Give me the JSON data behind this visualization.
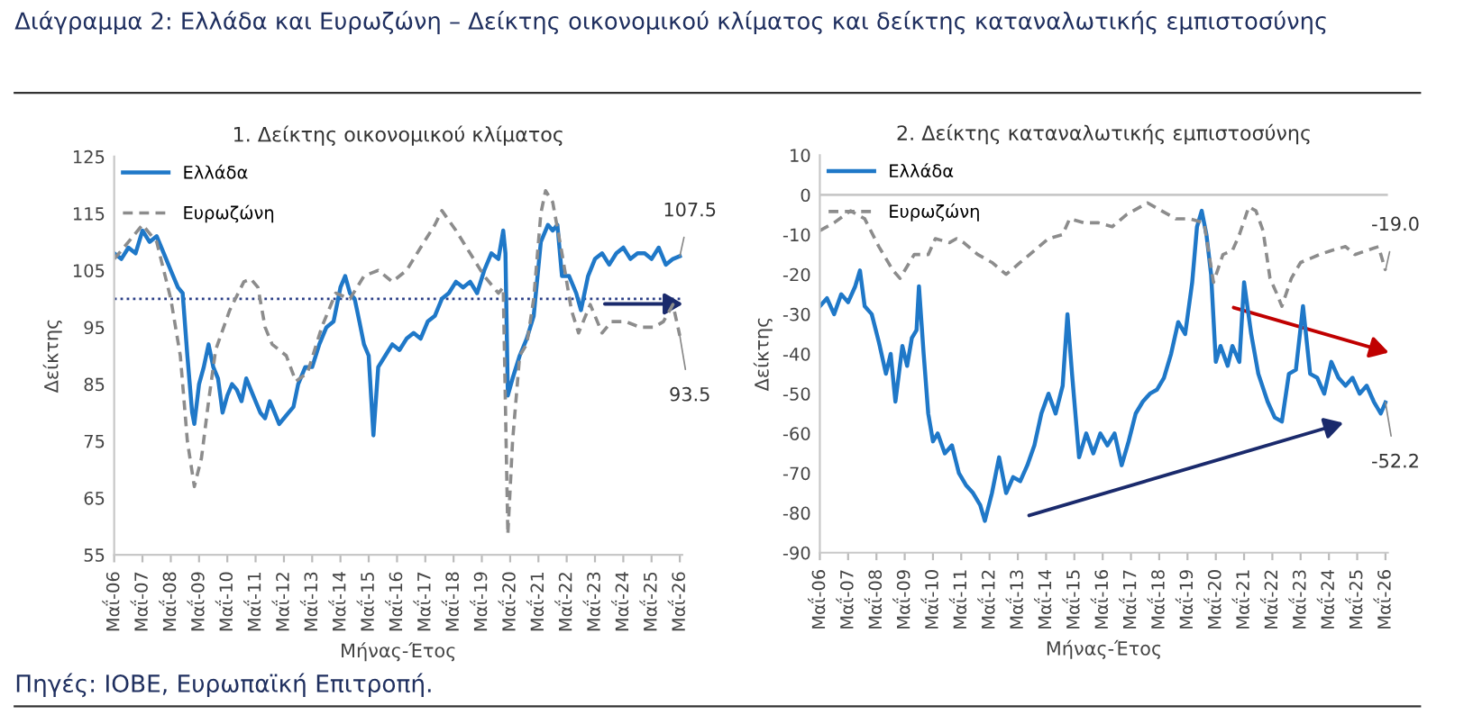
{
  "chart_data": [
    {
      "type": "other",
      "title": "Διάγραμμα 2: Ελλάδα και Ευρωζώνη – Δείκτης οικονομικού κλίματος και δείκτης καταναλωτικής εμπιστοσύνης",
      "annotations": [
        "Πηγές: ΙΟΒΕ, Ευρωπαϊκή Επιτροπή."
      ]
    },
    {
      "type": "line",
      "title": "1. Δείκτης οικονομικού κλίματος",
      "xlabel": "Μήνας-Έτος",
      "ylabel": "Δείκτης",
      "legend": "top left",
      "grid": false,
      "marker": "none",
      "xlim": [
        "2006-05",
        "2026-06"
      ],
      "ylim": [
        55,
        125
      ],
      "yticks": [
        55,
        65,
        75,
        85,
        95,
        105,
        115,
        125
      ],
      "xticks": [
        {
          "value": "2006-05",
          "label": "Μαΐ-06"
        },
        {
          "value": "2007-05",
          "label": "Μαΐ-07"
        },
        {
          "value": "2008-05",
          "label": "Μαΐ-08"
        },
        {
          "value": "2009-05",
          "label": "Μαΐ-09"
        },
        {
          "value": "2010-05",
          "label": "Μαΐ-10"
        },
        {
          "value": "2011-05",
          "label": "Μαΐ-11"
        },
        {
          "value": "2012-05",
          "label": "Μαΐ-12"
        },
        {
          "value": "2013-05",
          "label": "Μαΐ-13"
        },
        {
          "value": "2014-05",
          "label": "Μαΐ-14"
        },
        {
          "value": "2015-05",
          "label": "Μαΐ-15"
        },
        {
          "value": "2016-05",
          "label": "Μαΐ-16"
        },
        {
          "value": "2017-05",
          "label": "Μαΐ-17"
        },
        {
          "value": "2018-05",
          "label": "Μαΐ-18"
        },
        {
          "value": "2019-05",
          "label": "Μαΐ-19"
        },
        {
          "value": "2020-05",
          "label": "Μαΐ-20"
        },
        {
          "value": "2021-05",
          "label": "Μαΐ-21"
        },
        {
          "value": "2022-05",
          "label": "Μαΐ-22"
        },
        {
          "value": "2023-05",
          "label": "Μαΐ-23"
        },
        {
          "value": "2024-05",
          "label": "Μαΐ-24"
        },
        {
          "value": "2025-05",
          "label": "Μαΐ-25"
        },
        {
          "value": "2026-05",
          "label": "Μαΐ-26"
        }
      ],
      "ref_lines": [
        {
          "axis": "y",
          "value": 100,
          "label": null,
          "color": "#2b3f86",
          "line_style": "dotted"
        }
      ],
      "series": [
        {
          "name": "Ελλάδα",
          "color": "#1f78c8",
          "line_style": "solid",
          "x": [
            "2006-05",
            "2006-08",
            "2006-11",
            "2007-02",
            "2007-05",
            "2007-08",
            "2007-11",
            "2008-02",
            "2008-05",
            "2008-08",
            "2008-10",
            "2008-12",
            "2009-02",
            "2009-03",
            "2009-05",
            "2009-07",
            "2009-09",
            "2009-11",
            "2010-01",
            "2010-03",
            "2010-05",
            "2010-07",
            "2010-09",
            "2010-11",
            "2011-01",
            "2011-03",
            "2011-05",
            "2011-07",
            "2011-09",
            "2011-11",
            "2012-01",
            "2012-03",
            "2012-05",
            "2012-07",
            "2012-09",
            "2012-11",
            "2013-02",
            "2013-05",
            "2013-08",
            "2013-11",
            "2014-02",
            "2014-05",
            "2014-07",
            "2014-09",
            "2014-11",
            "2015-01",
            "2015-03",
            "2015-05",
            "2015-07",
            "2015-09",
            "2015-12",
            "2016-03",
            "2016-06",
            "2016-09",
            "2016-12",
            "2017-03",
            "2017-06",
            "2017-09",
            "2017-12",
            "2018-03",
            "2018-06",
            "2018-09",
            "2018-12",
            "2019-03",
            "2019-06",
            "2019-09",
            "2019-12",
            "2020-02",
            "2020-03",
            "2020-04",
            "2020-06",
            "2020-09",
            "2020-12",
            "2021-03",
            "2021-06",
            "2021-09",
            "2021-11",
            "2022-01",
            "2022-03",
            "2022-06",
            "2022-09",
            "2022-11",
            "2023-02",
            "2023-05",
            "2023-08",
            "2023-11",
            "2024-02",
            "2024-05",
            "2024-08",
            "2024-11",
            "2025-02",
            "2025-05",
            "2025-08",
            "2025-11",
            "2026-02",
            "2026-05"
          ],
          "values": [
            108,
            107,
            109,
            108,
            112,
            110,
            111,
            108,
            105,
            102,
            101,
            90,
            80,
            78,
            85,
            88,
            92,
            88,
            86,
            80,
            83,
            85,
            84,
            82,
            86,
            84,
            82,
            80,
            79,
            82,
            80,
            78,
            79,
            80,
            81,
            85,
            88,
            88,
            92,
            95,
            96,
            102,
            104,
            101,
            100,
            96,
            92,
            90,
            76,
            88,
            90,
            92,
            91,
            93,
            94,
            93,
            96,
            97,
            100,
            101,
            103,
            102,
            103,
            101,
            105,
            108,
            107,
            112,
            108,
            83,
            86,
            90,
            93,
            97,
            110,
            113,
            112,
            113,
            104,
            104,
            101,
            98,
            104,
            107,
            108,
            106,
            108,
            109,
            107,
            108,
            108,
            107,
            109,
            106,
            107,
            107.5
          ]
        },
        {
          "name": "Ευρωζώνη",
          "color": "#8c8c8c",
          "line_style": "dashed",
          "x": [
            "2006-05",
            "2006-11",
            "2007-05",
            "2007-11",
            "2008-05",
            "2008-09",
            "2008-12",
            "2009-03",
            "2009-06",
            "2009-09",
            "2009-12",
            "2010-06",
            "2010-12",
            "2011-03",
            "2011-06",
            "2011-09",
            "2011-12",
            "2012-06",
            "2012-10",
            "2013-03",
            "2013-09",
            "2014-03",
            "2014-09",
            "2015-03",
            "2015-09",
            "2016-03",
            "2016-09",
            "2017-03",
            "2017-09",
            "2017-12",
            "2018-06",
            "2018-12",
            "2019-06",
            "2019-12",
            "2020-02",
            "2020-04",
            "2020-06",
            "2020-09",
            "2020-12",
            "2021-03",
            "2021-06",
            "2021-08",
            "2021-11",
            "2022-03",
            "2022-07",
            "2022-10",
            "2023-03",
            "2023-08",
            "2023-12",
            "2024-06",
            "2024-12",
            "2025-06",
            "2025-10",
            "2026-02",
            "2026-05"
          ],
          "values": [
            107,
            110,
            113,
            110,
            100,
            90,
            75,
            67,
            72,
            82,
            91,
            98,
            103,
            103.5,
            102,
            95,
            92,
            90,
            85.5,
            87,
            95,
            101,
            100,
            104,
            105,
            103,
            105,
            109,
            113,
            115.5,
            112,
            108,
            104,
            101,
            102,
            58.6,
            75,
            90,
            92,
            100,
            115,
            119,
            117,
            108,
            98,
            94,
            99,
            94,
            96,
            96,
            95,
            95,
            96,
            99,
            93.5
          ]
        }
      ],
      "annotations": [
        {
          "text": "107.5",
          "x": "2026-05",
          "y": 107.5
        },
        {
          "text": "93.5",
          "x": "2026-05",
          "y": 93.5
        }
      ]
    },
    {
      "type": "line",
      "title": "2. Δείκτης καταναλωτικής εμπιστοσύνης",
      "xlabel": "Μήνας-Έτος",
      "ylabel": "Δείκτης",
      "legend": "top left",
      "grid": false,
      "marker": "none",
      "xlim": [
        "2006-05",
        "2026-06"
      ],
      "ylim": [
        -90,
        10
      ],
      "yticks": [
        -90,
        -80,
        -70,
        -60,
        -50,
        -40,
        -30,
        -20,
        -10,
        0,
        10
      ],
      "xticks": [
        {
          "value": "2006-05",
          "label": "Μαΐ-06"
        },
        {
          "value": "2007-05",
          "label": "Μαΐ-07"
        },
        {
          "value": "2008-05",
          "label": "Μαΐ-08"
        },
        {
          "value": "2009-05",
          "label": "Μαΐ-09"
        },
        {
          "value": "2010-05",
          "label": "Μαΐ-10"
        },
        {
          "value": "2011-05",
          "label": "Μαΐ-11"
        },
        {
          "value": "2012-05",
          "label": "Μαΐ-12"
        },
        {
          "value": "2013-05",
          "label": "Μαΐ-13"
        },
        {
          "value": "2014-05",
          "label": "Μαΐ-14"
        },
        {
          "value": "2015-05",
          "label": "Μαΐ-15"
        },
        {
          "value": "2016-05",
          "label": "Μαΐ-16"
        },
        {
          "value": "2017-05",
          "label": "Μαΐ-17"
        },
        {
          "value": "2018-05",
          "label": "Μαΐ-18"
        },
        {
          "value": "2019-05",
          "label": "Μαΐ-19"
        },
        {
          "value": "2020-05",
          "label": "Μαΐ-20"
        },
        {
          "value": "2021-05",
          "label": "Μαΐ-21"
        },
        {
          "value": "2022-05",
          "label": "Μαΐ-22"
        },
        {
          "value": "2023-05",
          "label": "Μαΐ-23"
        },
        {
          "value": "2024-05",
          "label": "Μαΐ-24"
        },
        {
          "value": "2025-05",
          "label": "Μαΐ-25"
        },
        {
          "value": "2026-05",
          "label": "Μαΐ-26"
        }
      ],
      "ref_lines": [
        {
          "axis": "y",
          "value": 0,
          "label": null,
          "color": "#c8c8c8",
          "line_style": "solid"
        }
      ],
      "series": [
        {
          "name": "Ελλάδα",
          "color": "#1f78c8",
          "line_style": "solid",
          "x": [
            "2006-05",
            "2006-08",
            "2006-11",
            "2007-02",
            "2007-05",
            "2007-08",
            "2007-10",
            "2007-12",
            "2008-03",
            "2008-06",
            "2008-09",
            "2008-11",
            "2009-01",
            "2009-04",
            "2009-06",
            "2009-08",
            "2009-10",
            "2009-11",
            "2010-01",
            "2010-03",
            "2010-05",
            "2010-07",
            "2010-10",
            "2011-01",
            "2011-04",
            "2011-07",
            "2011-10",
            "2012-01",
            "2012-03",
            "2012-06",
            "2012-09",
            "2012-12",
            "2013-03",
            "2013-06",
            "2013-09",
            "2013-12",
            "2014-03",
            "2014-06",
            "2014-09",
            "2014-12",
            "2015-02",
            "2015-04",
            "2015-07",
            "2015-10",
            "2016-01",
            "2016-04",
            "2016-07",
            "2016-10",
            "2017-01",
            "2017-04",
            "2017-07",
            "2017-10",
            "2018-01",
            "2018-04",
            "2018-07",
            "2018-10",
            "2019-01",
            "2019-04",
            "2019-07",
            "2019-09",
            "2019-11",
            "2020-01",
            "2020-03",
            "2020-05",
            "2020-07",
            "2020-10",
            "2020-12",
            "2021-03",
            "2021-05",
            "2021-08",
            "2021-11",
            "2022-03",
            "2022-06",
            "2022-09",
            "2022-12",
            "2023-03",
            "2023-06",
            "2023-09",
            "2023-12",
            "2024-03",
            "2024-06",
            "2024-09",
            "2024-12",
            "2025-03",
            "2025-06",
            "2025-09",
            "2025-12",
            "2026-03",
            "2026-05"
          ],
          "values": [
            -28,
            -26,
            -30,
            -25,
            -27,
            -23,
            -19,
            -28,
            -30,
            -37,
            -45,
            -40,
            -52,
            -38,
            -43,
            -36,
            -34,
            -23,
            -40,
            -55,
            -62,
            -60,
            -65,
            -63,
            -70,
            -73,
            -75,
            -78,
            -82,
            -75,
            -66,
            -75,
            -71,
            -72,
            -68,
            -63,
            -55,
            -50,
            -55,
            -48,
            -30,
            -45,
            -66,
            -60,
            -65,
            -60,
            -63,
            -60,
            -68,
            -62,
            -55,
            -52,
            -50,
            -49,
            -46,
            -40,
            -32,
            -35,
            -22,
            -8,
            -4,
            -10,
            -20,
            -42,
            -38,
            -43,
            -38,
            -42,
            -22,
            -35,
            -45,
            -52,
            -56,
            -57,
            -45,
            -44,
            -28,
            -45,
            -46,
            -50,
            -42,
            -46,
            -48,
            -46,
            -50,
            -48,
            -52,
            -55,
            -52.2
          ]
        },
        {
          "name": "Ευρωζώνη",
          "color": "#8c8c8c",
          "line_style": "dashed",
          "x": [
            "2006-05",
            "2006-11",
            "2007-06",
            "2007-12",
            "2008-06",
            "2008-12",
            "2009-03",
            "2009-09",
            "2010-03",
            "2010-06",
            "2010-12",
            "2011-03",
            "2011-06",
            "2011-12",
            "2012-06",
            "2012-12",
            "2013-06",
            "2013-12",
            "2014-06",
            "2014-12",
            "2015-03",
            "2015-09",
            "2016-03",
            "2016-09",
            "2017-03",
            "2017-09",
            "2017-12",
            "2018-06",
            "2018-12",
            "2019-06",
            "2019-12",
            "2020-04",
            "2020-08",
            "2020-12",
            "2021-03",
            "2021-07",
            "2021-10",
            "2022-01",
            "2022-04",
            "2022-07",
            "2022-09",
            "2023-01",
            "2023-05",
            "2023-09",
            "2024-01",
            "2024-06",
            "2024-12",
            "2025-04",
            "2025-09",
            "2026-02",
            "2026-05"
          ],
          "values": [
            -9,
            -7,
            -4,
            -6,
            -13,
            -19,
            -21,
            -15,
            -15,
            -11,
            -12,
            -11,
            -12,
            -15,
            -17,
            -20,
            -17,
            -14,
            -11,
            -10,
            -6,
            -7,
            -7,
            -8,
            -5,
            -3,
            -2,
            -4,
            -6,
            -6,
            -7,
            -22,
            -15,
            -14,
            -10,
            -3,
            -4,
            -9,
            -21,
            -25,
            -28,
            -21,
            -17,
            -16,
            -15,
            -14,
            -13,
            -15,
            -14,
            -13,
            -19
          ]
        }
      ],
      "annotations": [
        {
          "text": "-19.0",
          "x": "2026-05",
          "y": -19.0
        },
        {
          "text": "-52.2",
          "x": "2026-05",
          "y": -52.2
        }
      ]
    }
  ]
}
